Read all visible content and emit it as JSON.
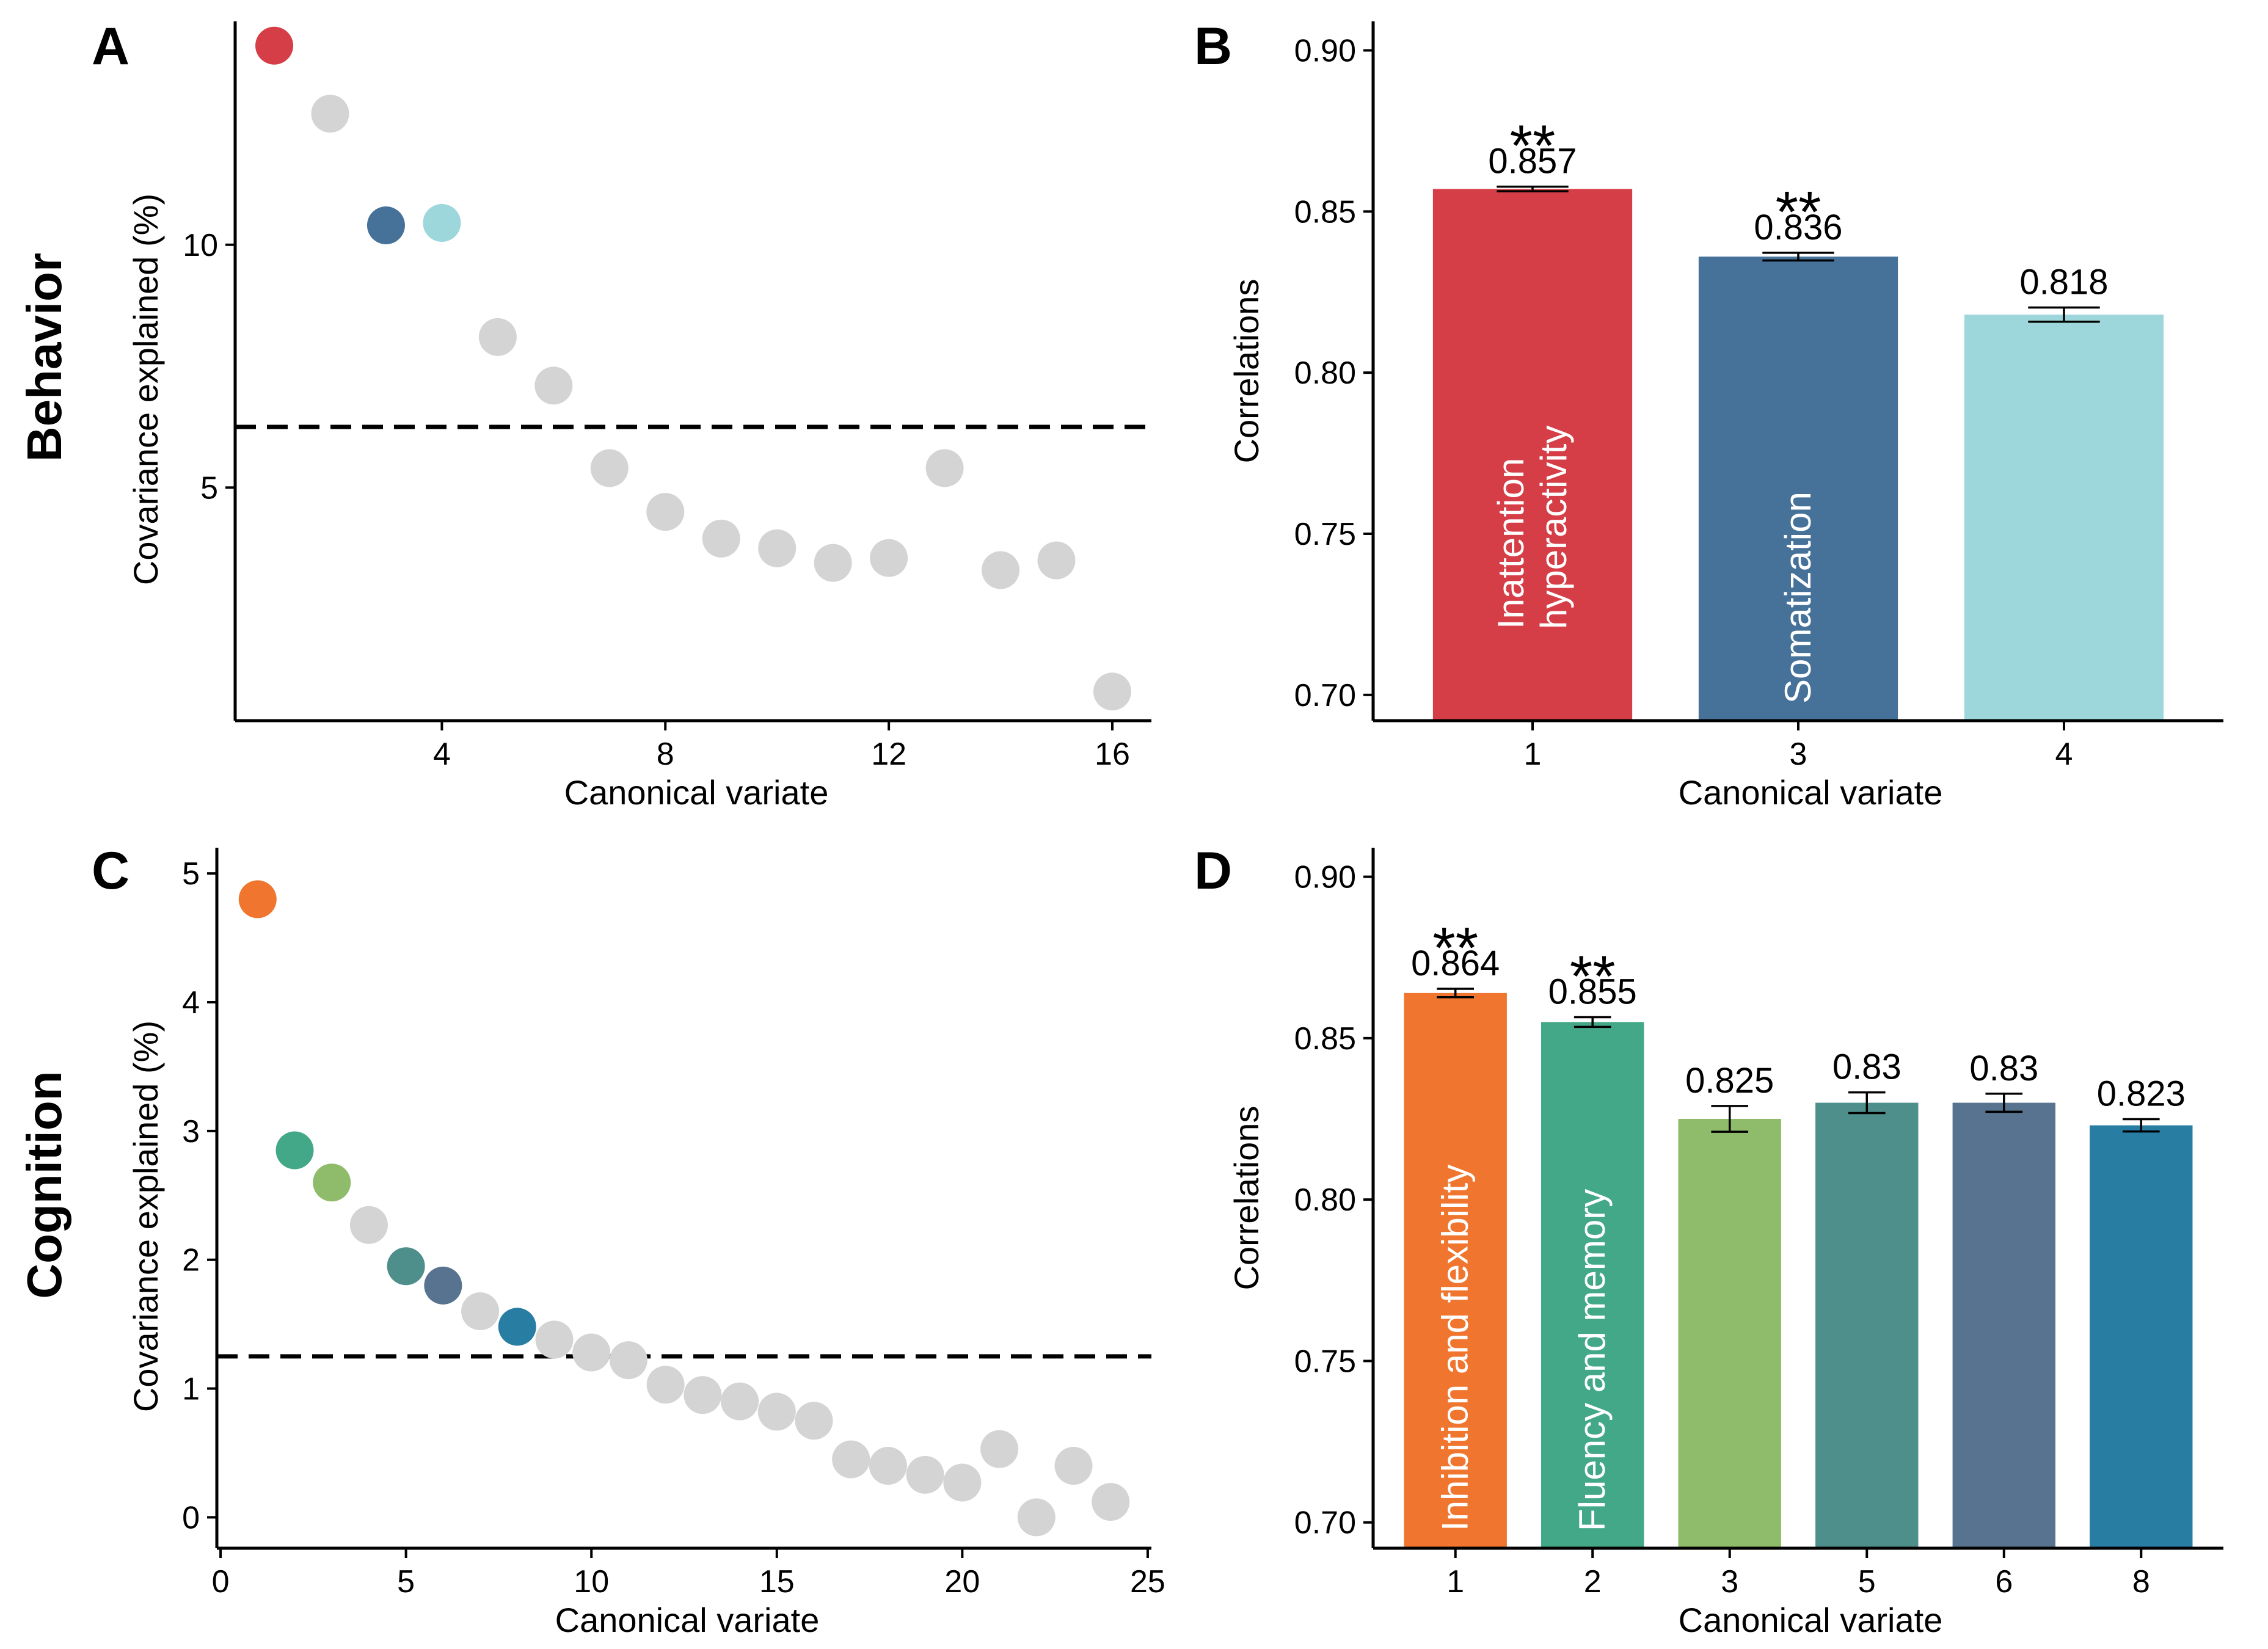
{
  "row_labels": {
    "top": "Behavior",
    "bottom": "Cognition"
  },
  "chart_data": [
    {
      "panel": "A",
      "type": "scatter",
      "xlabel": "Canonical variate",
      "ylabel": "Covariance explained (%)",
      "xlim": [
        0.3,
        16.7
      ],
      "ylim": [
        0.2,
        14.6
      ],
      "xticks": [
        4,
        8,
        12,
        16
      ],
      "yticks": [
        5,
        10
      ],
      "threshold": 6.25,
      "default_color": "#d4d4d4",
      "points": [
        {
          "x": 1,
          "y": 14.1,
          "color": "#d63e47"
        },
        {
          "x": 2,
          "y": 12.7
        },
        {
          "x": 3,
          "y": 10.4,
          "color": "#46729a"
        },
        {
          "x": 4,
          "y": 10.45,
          "color": "#9ed7db"
        },
        {
          "x": 5,
          "y": 8.1
        },
        {
          "x": 6,
          "y": 7.1
        },
        {
          "x": 7,
          "y": 5.4
        },
        {
          "x": 8,
          "y": 4.5
        },
        {
          "x": 9,
          "y": 3.95
        },
        {
          "x": 10,
          "y": 3.75
        },
        {
          "x": 11,
          "y": 3.45
        },
        {
          "x": 12,
          "y": 3.55
        },
        {
          "x": 13,
          "y": 5.4
        },
        {
          "x": 14,
          "y": 3.3
        },
        {
          "x": 15,
          "y": 3.5
        },
        {
          "x": 16,
          "y": 0.8
        }
      ]
    },
    {
      "panel": "B",
      "type": "bar",
      "xlabel": "Canonical variate",
      "ylabel": "Correlations",
      "ylim": [
        0.692,
        0.909
      ],
      "yticks": [
        "0.70",
        "0.75",
        "0.80",
        "0.85",
        "0.90"
      ],
      "categories": [
        "1",
        "3",
        "4"
      ],
      "values": [
        0.857,
        0.836,
        0.818
      ],
      "value_labels": [
        "0.857",
        "0.836",
        "0.818"
      ],
      "errors": [
        0.0007,
        0.0012,
        0.0022
      ],
      "colors": [
        "#d63e47",
        "#46729a",
        "#9ed7db"
      ],
      "significance": [
        "**",
        "**",
        ""
      ],
      "bar_text": [
        [
          "Inattention",
          "hyperactivity"
        ],
        [
          "Somatization"
        ],
        []
      ]
    },
    {
      "panel": "C",
      "type": "scatter",
      "xlabel": "Canonical variate",
      "ylabel": "Covariance explained (%)",
      "xlim": [
        -0.1,
        25.1
      ],
      "ylim": [
        -0.24,
        5.2
      ],
      "xticks": [
        0,
        5,
        10,
        15,
        20,
        25
      ],
      "yticks": [
        0,
        1,
        2,
        3,
        4,
        5
      ],
      "threshold": 1.25,
      "default_color": "#d4d4d4",
      "points": [
        {
          "x": 1,
          "y": 4.8,
          "color": "#f0752e"
        },
        {
          "x": 2,
          "y": 2.85,
          "color": "#43a887"
        },
        {
          "x": 3,
          "y": 2.6,
          "color": "#8fbc6a"
        },
        {
          "x": 4,
          "y": 2.27
        },
        {
          "x": 5,
          "y": 1.95,
          "color": "#4e8f8b"
        },
        {
          "x": 6,
          "y": 1.8,
          "color": "#57738f"
        },
        {
          "x": 7,
          "y": 1.6
        },
        {
          "x": 8,
          "y": 1.48,
          "color": "#287da2"
        },
        {
          "x": 9,
          "y": 1.38
        },
        {
          "x": 10,
          "y": 1.28
        },
        {
          "x": 11,
          "y": 1.22
        },
        {
          "x": 12,
          "y": 1.03
        },
        {
          "x": 13,
          "y": 0.95
        },
        {
          "x": 14,
          "y": 0.9
        },
        {
          "x": 15,
          "y": 0.82
        },
        {
          "x": 16,
          "y": 0.75
        },
        {
          "x": 17,
          "y": 0.45
        },
        {
          "x": 18,
          "y": 0.4
        },
        {
          "x": 19,
          "y": 0.33
        },
        {
          "x": 20,
          "y": 0.27
        },
        {
          "x": 21,
          "y": 0.53
        },
        {
          "x": 22,
          "y": 0.0
        },
        {
          "x": 23,
          "y": 0.4
        },
        {
          "x": 24,
          "y": 0.12
        }
      ]
    },
    {
      "panel": "D",
      "type": "bar",
      "xlabel": "Canonical variate",
      "ylabel": "Correlations",
      "ylim": [
        0.692,
        0.909
      ],
      "yticks": [
        "0.70",
        "0.75",
        "0.80",
        "0.85",
        "0.90"
      ],
      "categories": [
        "1",
        "2",
        "3",
        "5",
        "6",
        "8"
      ],
      "values": [
        0.864,
        0.855,
        0.825,
        0.83,
        0.83,
        0.823
      ],
      "value_labels": [
        "0.864",
        "0.855",
        "0.825",
        "0.83",
        "0.83",
        "0.823"
      ],
      "errors": [
        0.0013,
        0.0015,
        0.004,
        0.0032,
        0.0028,
        0.0019
      ],
      "colors": [
        "#f0752e",
        "#43a887",
        "#8fbc6a",
        "#4e8f8b",
        "#57738f",
        "#287da2"
      ],
      "significance": [
        "**",
        "**",
        "",
        "",
        "",
        ""
      ],
      "bar_text": [
        [
          "Inhibition and flexibility"
        ],
        [
          "Fluency and memory"
        ],
        [],
        [],
        [],
        []
      ]
    }
  ]
}
